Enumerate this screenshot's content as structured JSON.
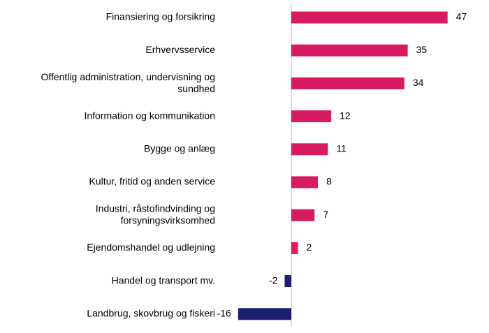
{
  "chart_data": {
    "type": "barh",
    "categories": [
      "Finansiering og forsikring",
      "Erhvervsservice",
      "Offentlig administration, undervisning og\nsundhed",
      "Information og kommunikation",
      "Bygge og anlæg",
      "Kultur, fritid og anden service",
      "Industri, råstofindvinding og\nforsyningsvirksomhed",
      "Ejendomshandel og udlejning",
      "Handel og transport mv.",
      "Landbrug, skovbrug og fiskeri"
    ],
    "values": [
      47,
      35,
      34,
      12,
      11,
      8,
      7,
      2,
      -2,
      -16
    ],
    "colors": [
      "#d81b60",
      "#d81b60",
      "#d81b60",
      "#d81b60",
      "#d81b60",
      "#d81b60",
      "#d81b60",
      "#d81b60",
      "#1b1f6e",
      "#1b1f6e"
    ]
  }
}
